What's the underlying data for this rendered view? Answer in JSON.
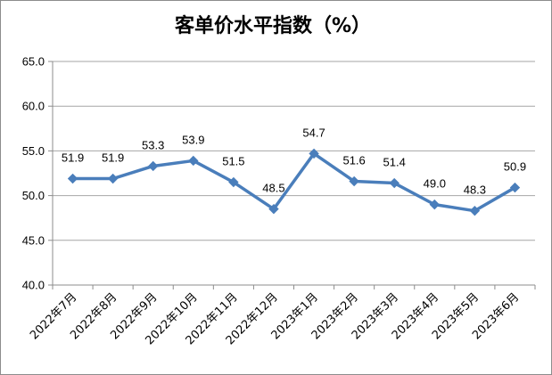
{
  "chart_data": {
    "type": "line",
    "title": "客单价水平指数（%）",
    "categories": [
      "2022年7月",
      "2022年8月",
      "2022年9月",
      "2022年10月",
      "2022年11月",
      "2022年12月",
      "2023年1月",
      "2023年2月",
      "2023年3月",
      "2023年4月",
      "2023年5月",
      "2023年6月"
    ],
    "values": [
      51.9,
      51.9,
      53.3,
      53.9,
      51.5,
      48.5,
      54.7,
      51.6,
      51.4,
      49.0,
      48.3,
      50.9
    ],
    "value_labels": [
      "51.9",
      "51.9",
      "53.3",
      "53.9",
      "51.5",
      "48.5",
      "54.7",
      "51.6",
      "51.4",
      "49.0",
      "48.3",
      "50.9"
    ],
    "ylim": [
      40,
      65
    ],
    "yticks": [
      "40.0",
      "45.0",
      "50.0",
      "55.0",
      "60.0",
      "65.0"
    ],
    "grid": true,
    "legend": "none",
    "line_color": "#4a7ebb",
    "marker_color": "#4a7ebb"
  }
}
